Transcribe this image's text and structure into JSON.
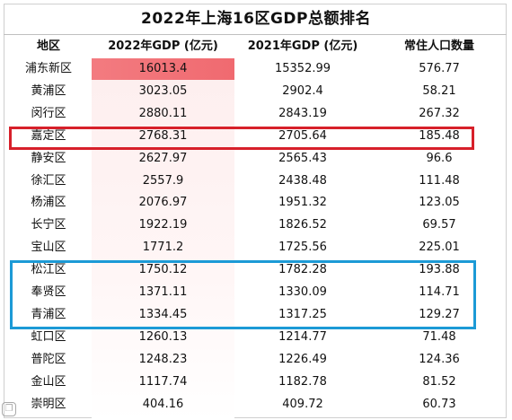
{
  "title": "2022年上海16区GDP总额排名",
  "columns": [
    "地区",
    "2022年GDP (亿元)",
    "2021年GDP (亿元)",
    "常住人口数量"
  ],
  "rows": [
    {
      "district": "浦东新区",
      "gdp2022": "16013.4",
      "gdp2021": "15352.99",
      "population": "576.77",
      "gdp2022_value": 16013.4
    },
    {
      "district": "黄浦区",
      "gdp2022": "3023.05",
      "gdp2021": "2902.4",
      "population": "58.21",
      "gdp2022_value": 3023.05
    },
    {
      "district": "闵行区",
      "gdp2022": "2880.11",
      "gdp2021": "2843.19",
      "population": "267.32",
      "gdp2022_value": 2880.11
    },
    {
      "district": "嘉定区",
      "gdp2022": "2768.31",
      "gdp2021": "2705.64",
      "population": "185.48",
      "gdp2022_value": 2768.31
    },
    {
      "district": "静安区",
      "gdp2022": "2627.97",
      "gdp2021": "2565.43",
      "population": "96.6",
      "gdp2022_value": 2627.97
    },
    {
      "district": "徐汇区",
      "gdp2022": "2557.9",
      "gdp2021": "2438.48",
      "population": "111.48",
      "gdp2022_value": 2557.9
    },
    {
      "district": "杨浦区",
      "gdp2022": "2076.97",
      "gdp2021": "1951.32",
      "population": "123.05",
      "gdp2022_value": 2076.97
    },
    {
      "district": "长宁区",
      "gdp2022": "1922.19",
      "gdp2021": "1826.52",
      "population": "69.57",
      "gdp2022_value": 1922.19
    },
    {
      "district": "宝山区",
      "gdp2022": "1771.2",
      "gdp2021": "1725.56",
      "population": "225.01",
      "gdp2022_value": 1771.2
    },
    {
      "district": "松江区",
      "gdp2022": "1750.12",
      "gdp2021": "1782.28",
      "population": "193.88",
      "gdp2022_value": 1750.12
    },
    {
      "district": "奉贤区",
      "gdp2022": "1371.11",
      "gdp2021": "1330.09",
      "population": "114.71",
      "gdp2022_value": 1371.11
    },
    {
      "district": "青浦区",
      "gdp2022": "1334.45",
      "gdp2021": "1317.25",
      "population": "129.27",
      "gdp2022_value": 1334.45
    },
    {
      "district": "虹口区",
      "gdp2022": "1260.13",
      "gdp2021": "1214.77",
      "population": "71.48",
      "gdp2022_value": 1260.13
    },
    {
      "district": "普陀区",
      "gdp2022": "1248.23",
      "gdp2021": "1226.49",
      "population": "124.36",
      "gdp2022_value": 1248.23
    },
    {
      "district": "金山区",
      "gdp2022": "1117.74",
      "gdp2021": "1182.78",
      "population": "81.52",
      "gdp2022_value": 1117.74
    },
    {
      "district": "崇明区",
      "gdp2022": "404.16",
      "gdp2021": "409.72",
      "population": "60.73",
      "gdp2022_value": 404.16
    }
  ],
  "highlight": {
    "red_rows": [
      "嘉定区"
    ],
    "blue_rows": [
      "松江区",
      "奉贤区",
      "青浦区"
    ],
    "red_color": "#d7202a",
    "blue_color": "#1c9ad6",
    "bar_color": "#f06a70"
  },
  "watermark_icon": "weibo-corner-icon"
}
